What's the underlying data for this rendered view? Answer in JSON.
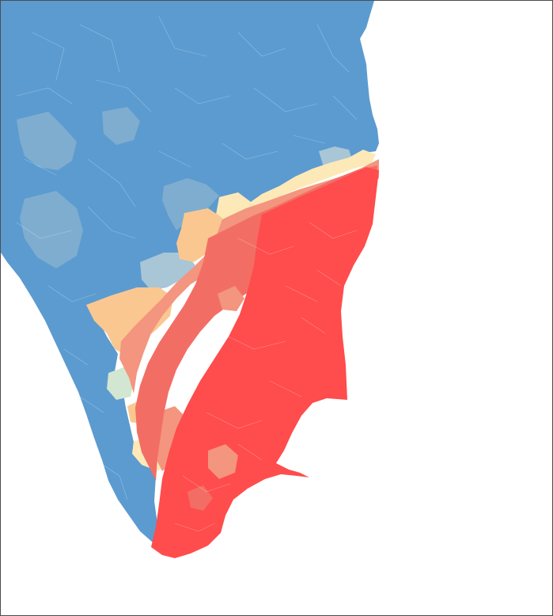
{
  "map": {
    "region": "South India",
    "colors": {
      "background": "#ffffff",
      "frame": "#4d4d4d",
      "strong_blue": "#5b9bd0",
      "mid_blue": "#7fadcf",
      "pale_blue": "#a8c6d6",
      "pale_green": "#d3e6d1",
      "pale_yellow": "#fde9b8",
      "peach": "#fbc790",
      "salmon": "#f3957f",
      "light_red": "#f26e65",
      "strong_red": "#ff4c4c"
    },
    "legend_shown": false,
    "labels_shown": false
  }
}
